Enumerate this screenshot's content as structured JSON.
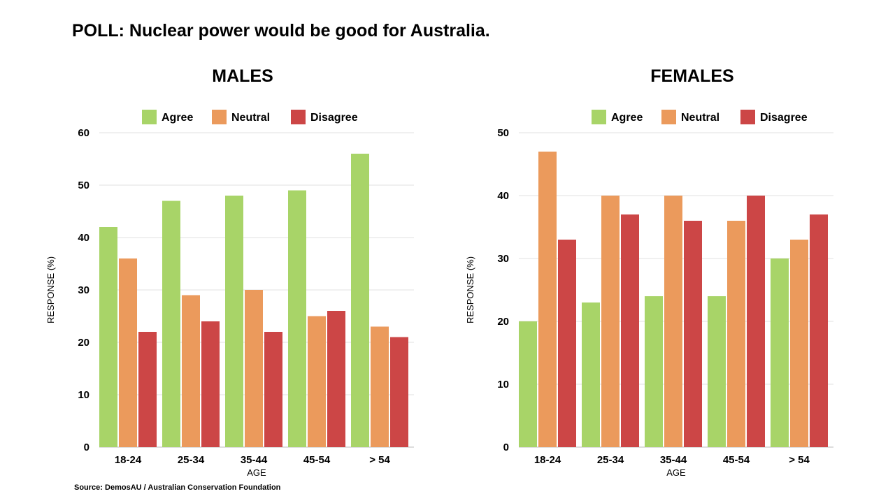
{
  "title": "POLL: Nuclear power would be good for Australia.",
  "source": "Source: DemosAU / Australian Conservation Foundation",
  "colors": {
    "Agree": "#a8d468",
    "Neutral": "#eb9a5c",
    "Disagree": "#cc4646",
    "grid": "#e2e2e2"
  },
  "chart_data": [
    {
      "type": "bar",
      "title": "MALES",
      "xlabel": "AGE",
      "ylabel": "RESPONSE (%)",
      "ylim": [
        0,
        60
      ],
      "yticks": [
        0,
        10,
        20,
        30,
        40,
        50,
        60
      ],
      "grid": true,
      "legend": "top",
      "categories": [
        "18-24",
        "25-34",
        "35-44",
        "45-54",
        "> 54"
      ],
      "series": [
        {
          "name": "Agree",
          "values": [
            42,
            47,
            48,
            49,
            56
          ]
        },
        {
          "name": "Neutral",
          "values": [
            36,
            29,
            30,
            25,
            23
          ]
        },
        {
          "name": "Disagree",
          "values": [
            22,
            24,
            22,
            26,
            21
          ]
        }
      ]
    },
    {
      "type": "bar",
      "title": "FEMALES",
      "xlabel": "AGE",
      "ylabel": "RESPONSE (%)",
      "ylim": [
        0,
        50
      ],
      "yticks": [
        0,
        10,
        20,
        30,
        40,
        50
      ],
      "grid": true,
      "legend": "top",
      "categories": [
        "18-24",
        "25-34",
        "35-44",
        "45-54",
        "> 54"
      ],
      "series": [
        {
          "name": "Agree",
          "values": [
            20,
            23,
            24,
            24,
            30
          ]
        },
        {
          "name": "Neutral",
          "values": [
            47,
            40,
            40,
            36,
            33
          ]
        },
        {
          "name": "Disagree",
          "values": [
            33,
            37,
            36,
            40,
            37
          ]
        }
      ]
    }
  ]
}
